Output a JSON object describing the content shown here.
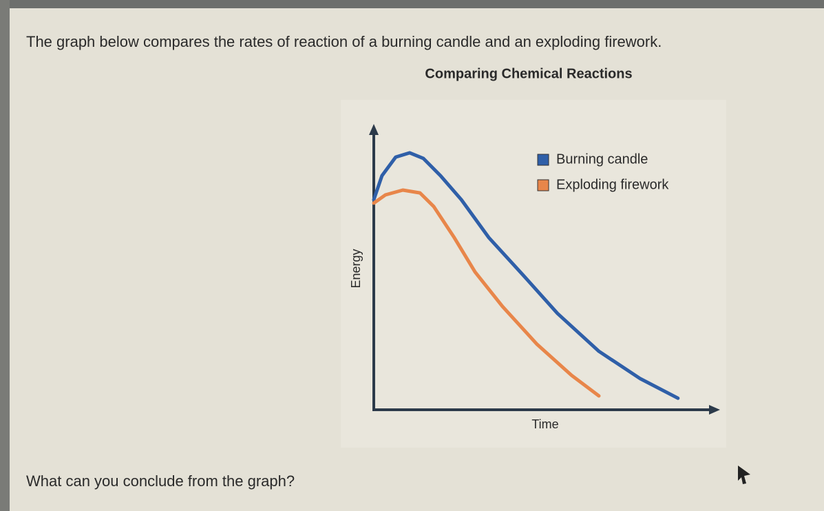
{
  "question": "The graph below compares the rates of reaction of a burning candle and an exploding firework.",
  "prompt": "What can you conclude from the graph?",
  "chart_data": {
    "type": "line",
    "title": "Comparing Chemical Reactions",
    "x_label": "Time",
    "y_label": "Energy",
    "xlim": [
      0,
      100
    ],
    "ylim": [
      0,
      100
    ],
    "series": [
      {
        "name": "Burning candle",
        "color": "#2f5fa8",
        "x": [
          0,
          2.4,
          6.4,
          10.5,
          14.5,
          19.5,
          25.6,
          33.6,
          43.7,
          53.7,
          65.8,
          77.9,
          88.9
        ],
        "values": [
          74.4,
          82.9,
          89.5,
          91.0,
          89.0,
          82.9,
          74.4,
          61.0,
          47.6,
          34.1,
          20.7,
          11.0,
          4.1
        ]
      },
      {
        "name": "Exploding firework",
        "color": "#e8864a",
        "x": [
          0,
          3.4,
          8.5,
          13.5,
          17.5,
          23.5,
          29.6,
          37.6,
          47.7,
          57.8,
          65.8
        ],
        "values": [
          73.2,
          76.1,
          77.8,
          76.8,
          72.0,
          61.0,
          48.8,
          36.6,
          23.2,
          12.2,
          4.9
        ]
      }
    ]
  }
}
